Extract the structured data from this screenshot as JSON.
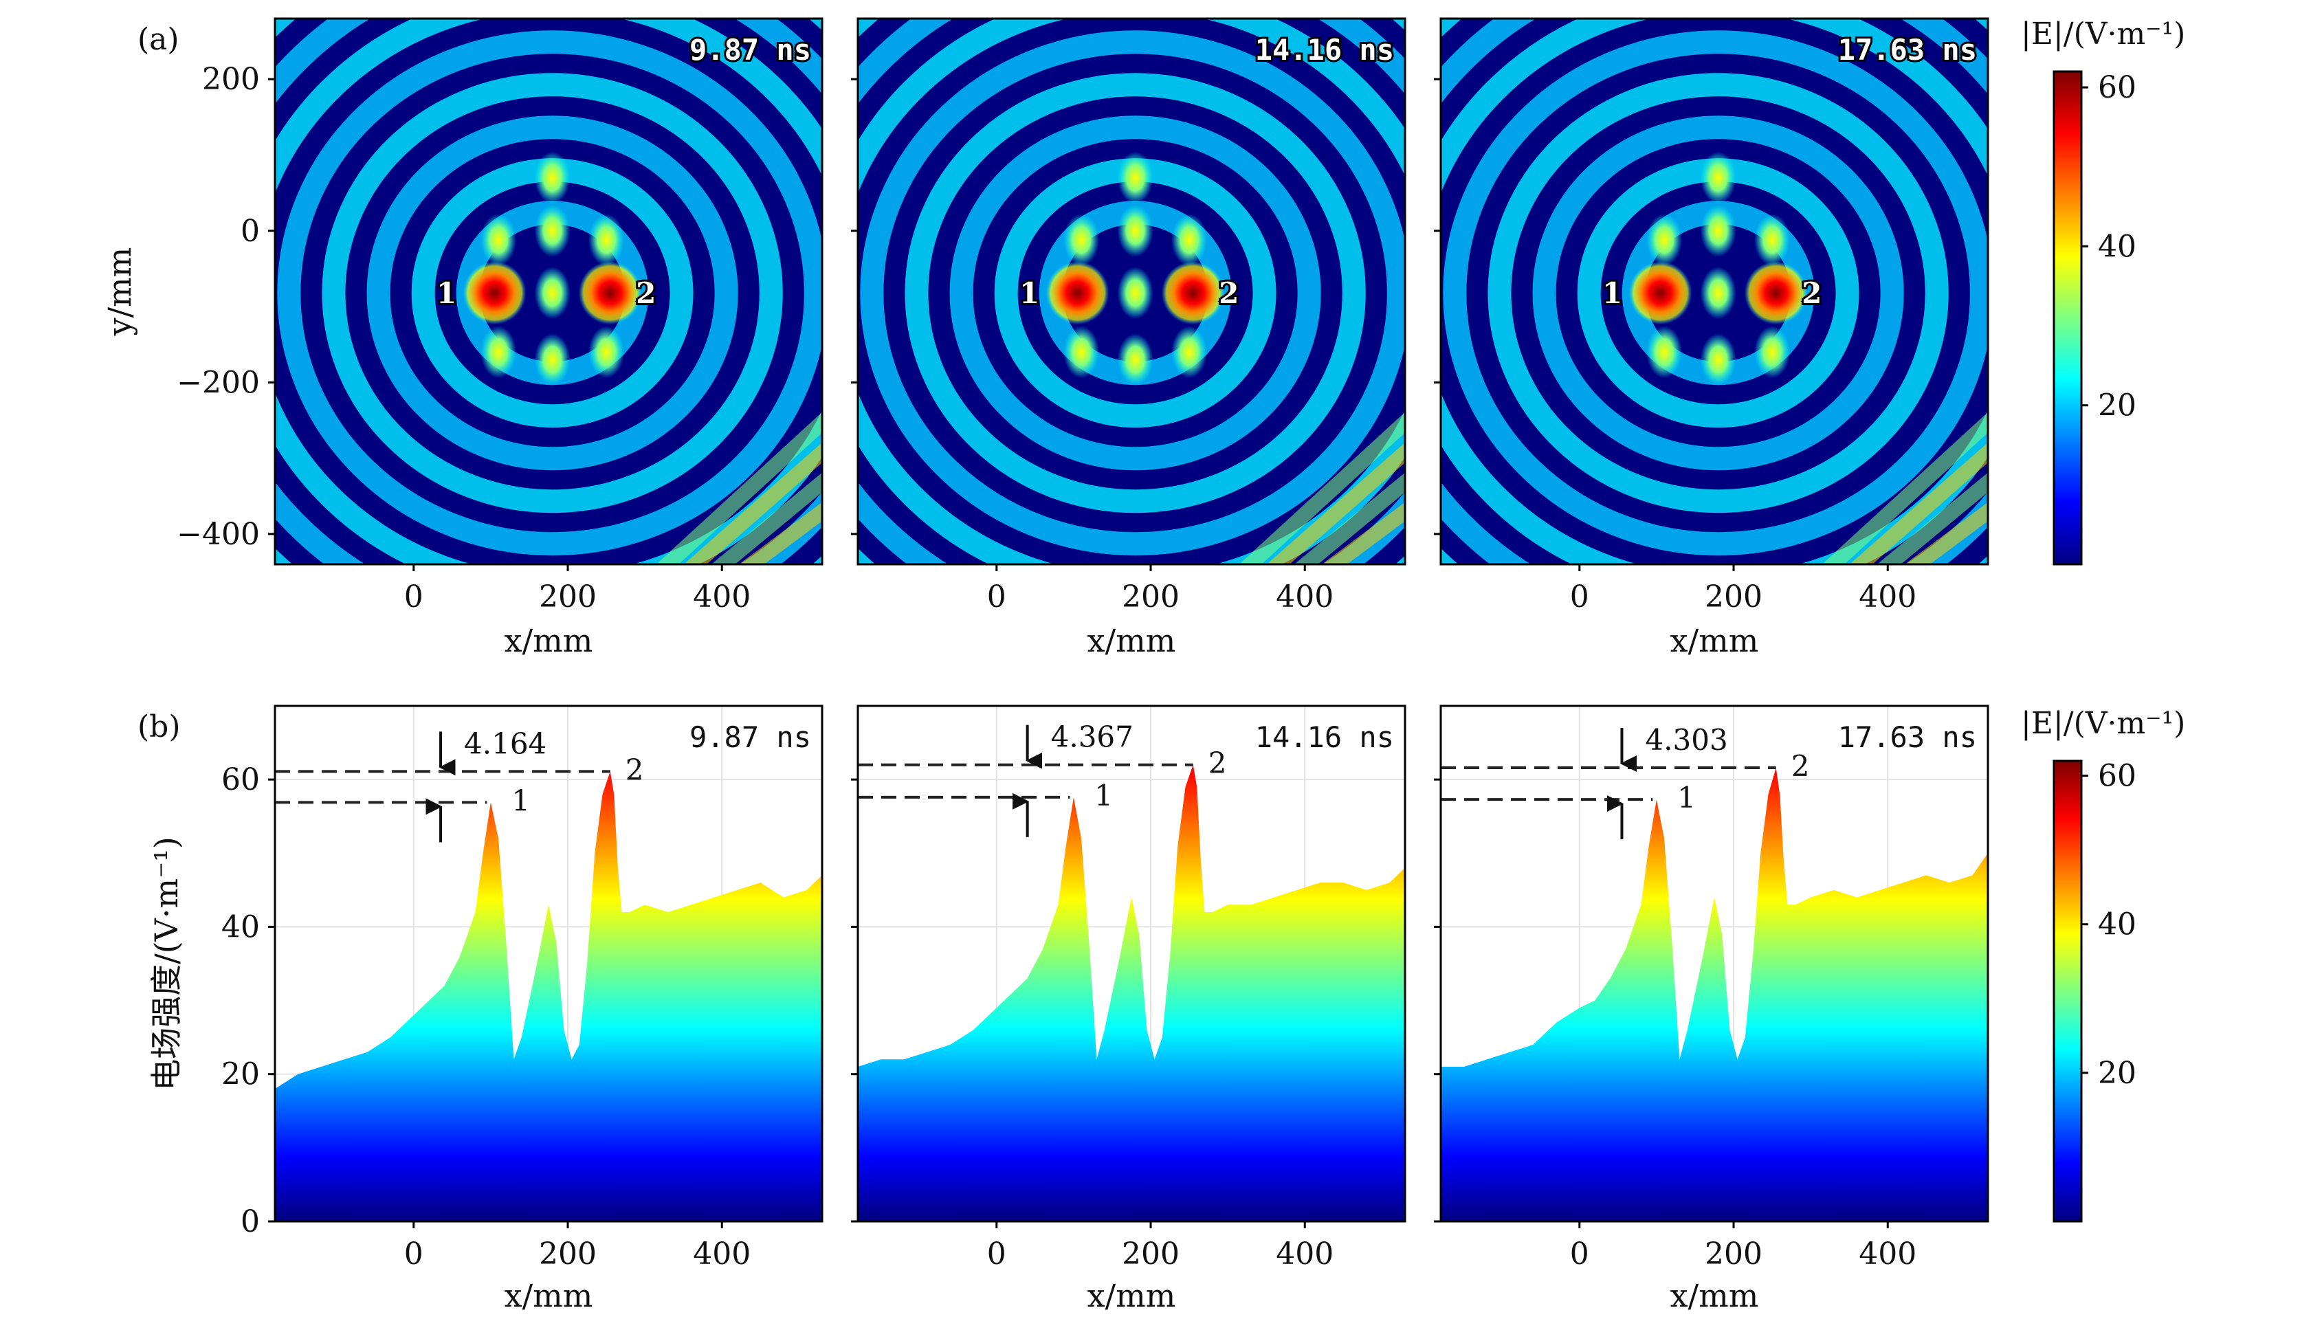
{
  "panel_labels": {
    "a": "(a)",
    "b": "(b)"
  },
  "colorbar_title": "|E|/(V·m⁻¹)",
  "colorbar_ticks": [
    "20",
    "40",
    "60"
  ],
  "colors": {
    "jet": [
      "#00007f",
      "#0000ff",
      "#007fff",
      "#00ffff",
      "#7fff7f",
      "#ffff00",
      "#ff7f00",
      "#ff0000",
      "#7f0000"
    ],
    "dashed_line": "#222222",
    "axes": "#000000"
  },
  "chart_data": [
    {
      "type": "heatmap",
      "panel": "a",
      "subplots": [
        {
          "time": "9.87 ns"
        },
        {
          "time": "14.16 ns"
        },
        {
          "time": "17.63 ns"
        }
      ],
      "xlabel": "x/mm",
      "ylabel": "y/mm",
      "xlim": [
        -180,
        530
      ],
      "ylim": [
        -440,
        280
      ],
      "xticks": [
        "0",
        "200",
        "400"
      ],
      "yticks": [
        "200",
        "0",
        "−200",
        "−400"
      ],
      "sources": [
        {
          "label": "1",
          "x": 105,
          "y": -82
        },
        {
          "label": "2",
          "x": 255,
          "y": -82
        }
      ],
      "color_range": [
        0,
        62
      ]
    },
    {
      "type": "area",
      "panel": "b",
      "xlabel": "x/mm",
      "ylabel": "电场强度/(V·m⁻¹)",
      "xlim": [
        -180,
        530
      ],
      "ylim": [
        0,
        70
      ],
      "xticks": [
        "0",
        "200",
        "400"
      ],
      "yticks": [
        "0",
        "20",
        "40",
        "60"
      ],
      "x": [
        -180,
        -150,
        -120,
        -90,
        -60,
        -30,
        0,
        20,
        40,
        60,
        80,
        90,
        100,
        110,
        120,
        130,
        140,
        160,
        175,
        185,
        195,
        205,
        215,
        225,
        235,
        245,
        255,
        260,
        265,
        270,
        280,
        300,
        330,
        360,
        390,
        420,
        450,
        480,
        510,
        530
      ],
      "series": [
        {
          "time": "9.87 ns",
          "peak_difference": "4.164",
          "peak1": 56.9,
          "peak2": 61.1,
          "values": [
            18,
            20,
            21,
            22,
            23,
            25,
            28,
            30,
            32,
            36,
            42,
            50,
            56.9,
            52,
            38,
            22,
            25,
            35,
            43,
            38,
            26,
            22,
            24,
            35,
            50,
            58,
            61.1,
            58,
            48,
            42,
            42,
            43,
            42,
            43,
            44,
            45,
            46,
            44,
            45,
            47
          ]
        },
        {
          "time": "14.16 ns",
          "peak_difference": "4.367",
          "peak1": 57.6,
          "peak2": 62.0,
          "values": [
            21,
            22,
            22,
            23,
            24,
            26,
            29,
            31,
            33,
            37,
            43,
            51,
            57.6,
            52,
            38,
            22,
            26,
            36,
            44,
            39,
            26,
            22,
            25,
            36,
            51,
            59,
            62.0,
            59,
            49,
            42,
            42,
            43,
            43,
            44,
            45,
            46,
            46,
            45,
            46,
            48
          ]
        },
        {
          "time": "17.63 ns",
          "peak_difference": "4.303",
          "peak1": 57.3,
          "peak2": 61.6,
          "values": [
            21,
            21,
            22,
            23,
            24,
            27,
            29,
            30,
            33,
            37,
            43,
            51,
            57.3,
            52,
            38,
            22,
            26,
            36,
            44,
            39,
            26,
            22,
            25,
            36,
            50,
            58,
            61.6,
            58,
            49,
            43,
            43,
            44,
            45,
            44,
            45,
            46,
            47,
            46,
            47,
            50
          ]
        }
      ]
    }
  ]
}
